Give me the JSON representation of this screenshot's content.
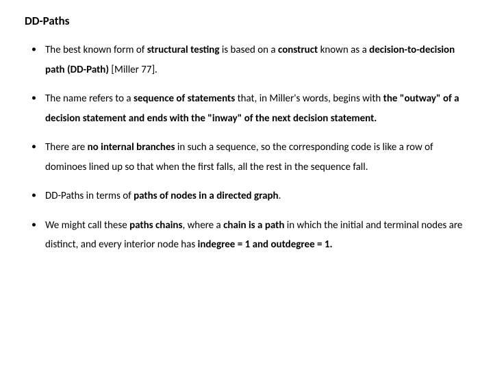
{
  "title": "DD-Paths",
  "bullets": [
    {
      "segments": [
        {
          "t": "The best known form of ",
          "b": false
        },
        {
          "t": "structural testing ",
          "b": true
        },
        {
          "t": "is based on a ",
          "b": false
        },
        {
          "t": "construct ",
          "b": true
        },
        {
          "t": "known as a ",
          "b": false
        },
        {
          "t": "decision-to-decision path (DD-Path) ",
          "b": true
        },
        {
          "t": "[Miller 77].",
          "b": false
        }
      ]
    },
    {
      "segments": [
        {
          "t": "The name refers to a ",
          "b": false
        },
        {
          "t": "sequence of statements ",
          "b": true
        },
        {
          "t": "that, in Miller's words, begins with ",
          "b": false
        },
        {
          "t": "the \"outway\" of a decision statement and ends with the \"inway\" of the next decision statement.",
          "b": true
        }
      ]
    },
    {
      "segments": [
        {
          "t": "There are ",
          "b": false
        },
        {
          "t": "no internal branches ",
          "b": true
        },
        {
          "t": "in such a sequence, so the corresponding code is like a row of dominoes lined up so that when the first falls, all the rest in the sequence fall.",
          "b": false
        }
      ]
    },
    {
      "segments": [
        {
          "t": "DD-Paths in terms of ",
          "b": false
        },
        {
          "t": "paths of nodes in a directed graph",
          "b": true
        },
        {
          "t": ".",
          "b": false
        }
      ]
    },
    {
      "segments": [
        {
          "t": "We might call these ",
          "b": false
        },
        {
          "t": "paths chains",
          "b": true
        },
        {
          "t": ", where a ",
          "b": false
        },
        {
          "t": "chain is a path ",
          "b": true
        },
        {
          "t": "in which the initial and terminal nodes are distinct, and every interior node has ",
          "b": false
        },
        {
          "t": "indegree = 1 and outdegree = 1.",
          "b": true
        }
      ]
    }
  ]
}
